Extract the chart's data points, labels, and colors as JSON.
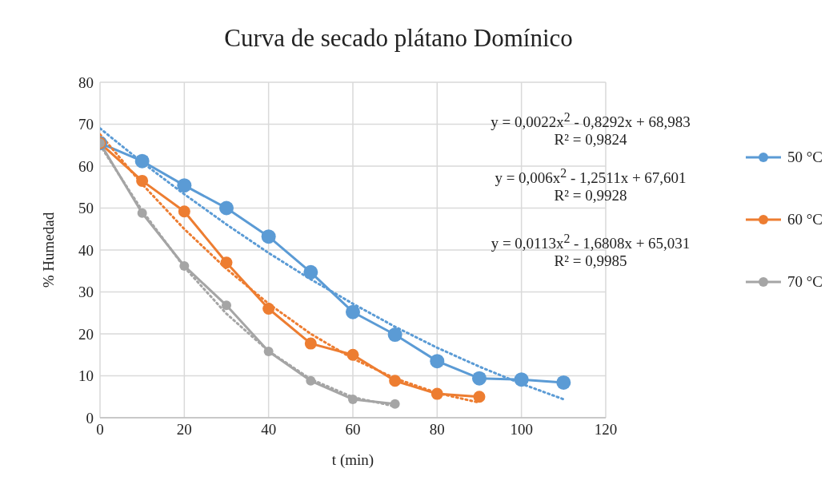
{
  "chart_data": {
    "type": "line",
    "title": "Curva de secado plátano Domínico",
    "xlabel": "t (min)",
    "ylabel": "% Humedad",
    "xlim": [
      0,
      120
    ],
    "xticks": [
      0,
      20,
      40,
      60,
      80,
      100,
      120
    ],
    "ylim": [
      0,
      80
    ],
    "yticks": [
      0,
      10,
      20,
      30,
      40,
      50,
      60,
      70,
      80
    ],
    "grid": true,
    "legend": "right",
    "marker": "circle",
    "line_style": "solid",
    "series": [
      {
        "name": "50 °C",
        "color": "#5b9bd5",
        "x": [
          0,
          10,
          20,
          30,
          40,
          50,
          60,
          70,
          80,
          90,
          100,
          110
        ],
        "values": [
          65.5,
          61.2,
          55.4,
          50.0,
          43.2,
          34.7,
          25.2,
          19.8,
          13.5,
          9.4,
          9.1,
          8.4
        ]
      },
      {
        "name": "60 °C",
        "color": "#ed7d31",
        "x": [
          0,
          10,
          20,
          30,
          40,
          50,
          60,
          70,
          80,
          90
        ],
        "values": [
          65.5,
          56.5,
          49.2,
          37.0,
          26.0,
          17.7,
          15.0,
          8.8,
          5.7,
          5.0
        ]
      },
      {
        "name": "70 °C",
        "color": "#a5a5a5",
        "x": [
          0,
          10,
          20,
          30,
          40,
          50,
          60,
          70
        ],
        "values": [
          65.5,
          48.8,
          36.2,
          26.8,
          15.8,
          8.8,
          4.4,
          3.3
        ]
      },
      {
        "type": "line",
        "color": "#5b9bd5",
        "marker": "none",
        "line_style": "dotted",
        "x": [
          0,
          10,
          20,
          30,
          40,
          50,
          60,
          70,
          80,
          90,
          100,
          110
        ],
        "values": [
          69.0,
          60.9,
          53.3,
          46.1,
          39.3,
          33.0,
          27.2,
          21.7,
          16.7,
          12.2,
          8.1,
          4.4
        ]
      },
      {
        "type": "line",
        "color": "#ed7d31",
        "marker": "none",
        "line_style": "dotted",
        "x": [
          0,
          10,
          20,
          30,
          40,
          50,
          60,
          70,
          80,
          90
        ],
        "values": [
          67.6,
          55.7,
          45.0,
          35.5,
          27.2,
          20.0,
          14.1,
          9.4,
          5.9,
          3.6
        ]
      },
      {
        "type": "line",
        "color": "#a5a5a5",
        "marker": "none",
        "line_style": "dotted",
        "x": [
          0,
          10,
          20,
          30,
          40,
          50,
          60,
          70
        ],
        "values": [
          65.0,
          49.4,
          35.9,
          24.8,
          15.9,
          9.2,
          4.9,
          2.7
        ]
      }
    ],
    "annotations": [
      "y = 0,0022x$^{2}$ - 0,8292x + 68,983",
      "R² = 0,9824",
      "y = 0,006x$^{2}$ - 1,2511x + 67,601",
      "R² = 0,9928",
      "y = 0,0113x$^{2}$ - 1,6808x + 65,031",
      "R² = 0,9985"
    ]
  }
}
